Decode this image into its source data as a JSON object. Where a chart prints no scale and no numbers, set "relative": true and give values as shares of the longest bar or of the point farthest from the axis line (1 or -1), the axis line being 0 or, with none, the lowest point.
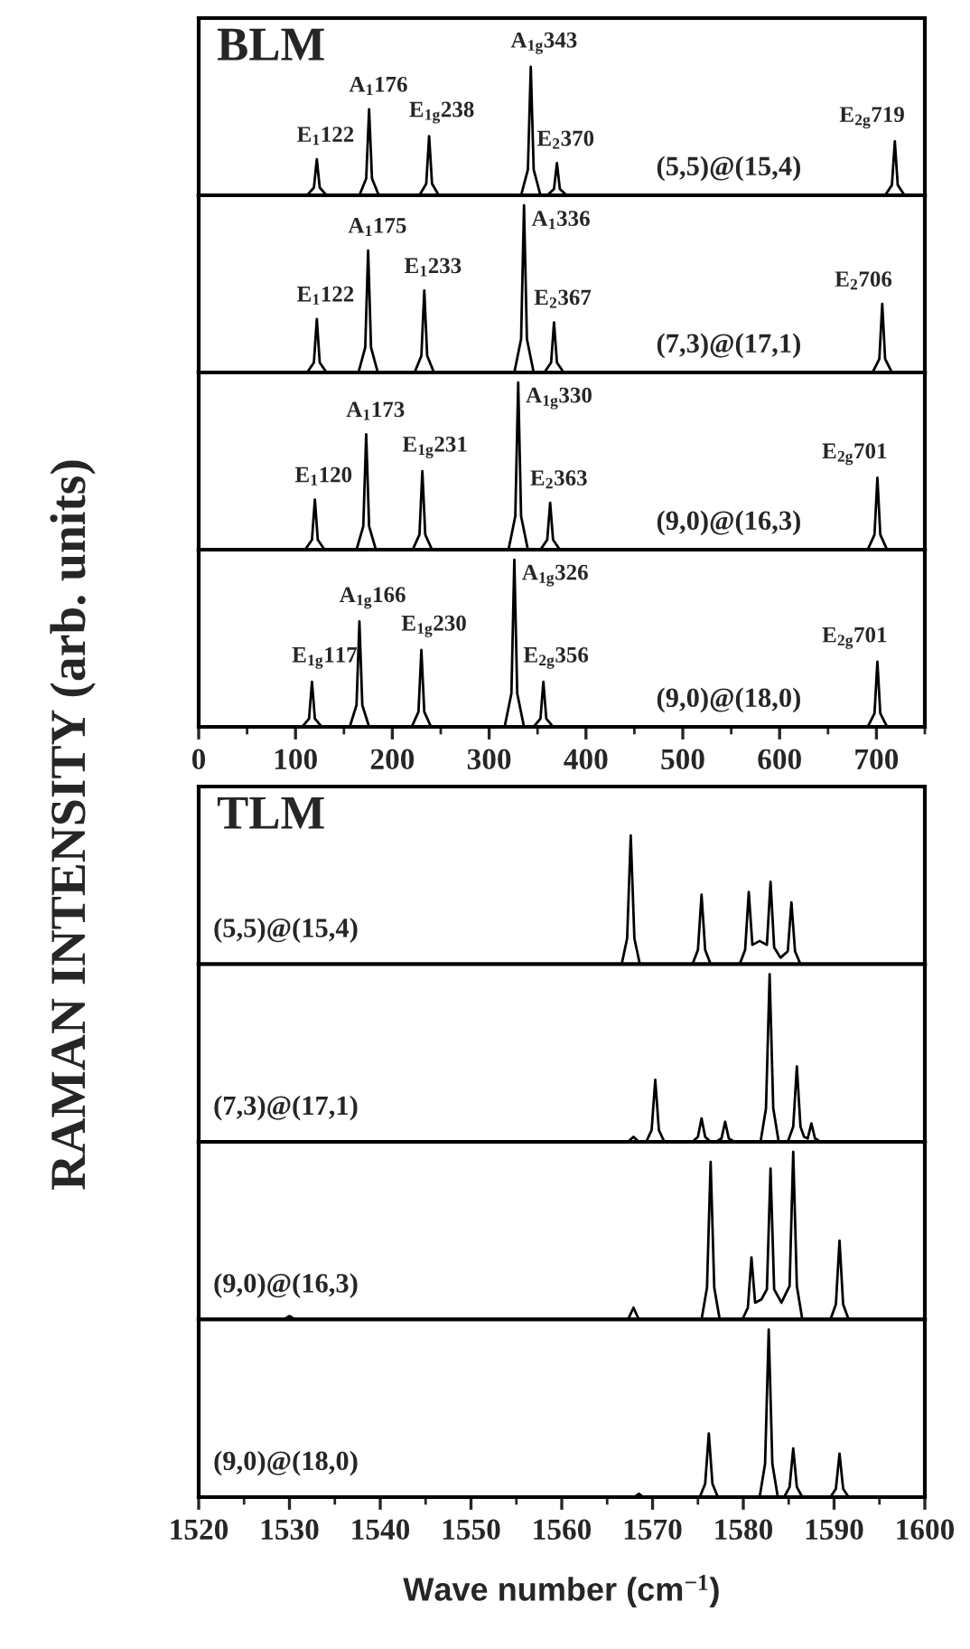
{
  "chart_data": [
    {
      "type": "line",
      "title": "BLM",
      "ylabel": "RAMAN INTENSITY (arb. units)",
      "relative": true,
      "xlim": [
        0,
        750
      ],
      "tick_labels": false,
      "legend": false,
      "grid": false,
      "marker": "none",
      "line_style": "solid",
      "series": [
        {
          "name": "(5,5)@(15,4)",
          "color": "#000000",
          "x": [
            0,
            112,
            119,
            122,
            125,
            132,
            166,
            173,
            176,
            179,
            186,
            228,
            235,
            238,
            241,
            248,
            333,
            340,
            343,
            346,
            353,
            360,
            367,
            370,
            373,
            380,
            709,
            716,
            719,
            722,
            729,
            750
          ],
          "values": [
            0,
            0,
            0.06,
            0.28,
            0.06,
            0,
            0,
            0.13,
            0.67,
            0.13,
            0,
            0,
            0.09,
            0.46,
            0.09,
            0,
            0,
            0.2,
            1,
            0.2,
            0,
            0,
            0.05,
            0.25,
            0.05,
            0,
            0,
            0.08,
            0.42,
            0.08,
            0,
            0
          ]
        }
      ],
      "annotations": [
        {
          "text": "E$_{1}$122",
          "x": 122,
          "y": 0.28
        },
        {
          "text": "A$_{1}$176",
          "x": 176,
          "y": 0.67
        },
        {
          "text": "E$_{1g}$238",
          "x": 238,
          "y": 0.46
        },
        {
          "text": "A$_{1g}$343",
          "x": 343,
          "y": 1
        },
        {
          "text": "E$_{2}$370",
          "x": 370,
          "y": 0.25
        },
        {
          "text": "E$_{2g}$719",
          "x": 719,
          "y": 0.42
        }
      ]
    },
    {
      "type": "line",
      "relative": true,
      "xlim": [
        0,
        750
      ],
      "tick_labels": false,
      "legend": false,
      "grid": false,
      "marker": "none",
      "line_style": "solid",
      "series": [
        {
          "name": "(7,3)@(17,1)",
          "color": "#000000",
          "x": [
            0,
            112,
            119,
            122,
            125,
            132,
            165,
            172,
            175,
            178,
            185,
            223,
            230,
            233,
            236,
            243,
            326,
            333,
            336,
            339,
            346,
            357,
            364,
            367,
            370,
            377,
            696,
            703,
            706,
            709,
            716,
            750
          ],
          "values": [
            0,
            0,
            0.06,
            0.32,
            0.06,
            0,
            0,
            0.15,
            0.73,
            0.15,
            0,
            0,
            0.1,
            0.49,
            0.1,
            0,
            0,
            0.2,
            1,
            0.2,
            0,
            0,
            0.06,
            0.3,
            0.06,
            0,
            0,
            0.08,
            0.41,
            0.08,
            0,
            0
          ]
        }
      ],
      "annotations": [
        {
          "text": "E$_{1}$122",
          "x": 122,
          "y": 0.32
        },
        {
          "text": "A$_{1}$175",
          "x": 175,
          "y": 0.73
        },
        {
          "text": "E$_{1}$233",
          "x": 233,
          "y": 0.49
        },
        {
          "text": "A$_{1}$336",
          "x": 336,
          "y": 1
        },
        {
          "text": "E$_{2}$367",
          "x": 367,
          "y": 0.3
        },
        {
          "text": "E$_{2}$706",
          "x": 706,
          "y": 0.41
        }
      ]
    },
    {
      "type": "line",
      "relative": true,
      "xlim": [
        0,
        750
      ],
      "tick_labels": false,
      "legend": false,
      "grid": false,
      "marker": "none",
      "line_style": "solid",
      "series": [
        {
          "name": "(9,0)@(16,3)",
          "color": "#000000",
          "x": [
            0,
            110,
            117,
            120,
            123,
            130,
            163,
            170,
            173,
            176,
            183,
            221,
            228,
            231,
            234,
            241,
            320,
            327,
            330,
            333,
            340,
            353,
            360,
            363,
            366,
            373,
            691,
            698,
            701,
            704,
            711,
            750
          ],
          "values": [
            0,
            0,
            0.06,
            0.3,
            0.06,
            0,
            0,
            0.14,
            0.69,
            0.14,
            0,
            0,
            0.09,
            0.47,
            0.09,
            0,
            0,
            0.2,
            1,
            0.2,
            0,
            0,
            0.06,
            0.28,
            0.06,
            0,
            0,
            0.09,
            0.43,
            0.09,
            0,
            0
          ]
        }
      ],
      "annotations": [
        {
          "text": "E$_{1}$120",
          "x": 120,
          "y": 0.3
        },
        {
          "text": "A$_{1}$173",
          "x": 173,
          "y": 0.69
        },
        {
          "text": "E$_{1g}$231",
          "x": 231,
          "y": 0.47
        },
        {
          "text": "A$_{1g}$330",
          "x": 330,
          "y": 1
        },
        {
          "text": "E$_{2}$363",
          "x": 363,
          "y": 0.28
        },
        {
          "text": "E$_{2g}$701",
          "x": 701,
          "y": 0.43
        }
      ]
    },
    {
      "type": "line",
      "relative": true,
      "xlim": [
        0,
        750
      ],
      "xticks": [
        0,
        {
          "value": 50,
          "label": null
        },
        100,
        {
          "value": 150,
          "label": null
        },
        200,
        {
          "value": 250,
          "label": null
        },
        300,
        {
          "value": 350,
          "label": null
        },
        400,
        {
          "value": 450,
          "label": null
        },
        500,
        {
          "value": 550,
          "label": null
        },
        600,
        {
          "value": 650,
          "label": null
        },
        700,
        {
          "value": 750,
          "label": null
        }
      ],
      "tick_labels": "x",
      "legend": false,
      "grid": false,
      "marker": "none",
      "line_style": "solid",
      "series": [
        {
          "name": "(9,0)@(18,0)",
          "color": "#000000",
          "x": [
            0,
            107,
            114,
            117,
            120,
            127,
            156,
            163,
            166,
            169,
            176,
            220,
            227,
            230,
            233,
            240,
            316,
            323,
            326,
            329,
            336,
            346,
            353,
            356,
            359,
            366,
            691,
            698,
            701,
            704,
            711,
            750
          ],
          "values": [
            0,
            0,
            0.05,
            0.27,
            0.05,
            0,
            0,
            0.13,
            0.63,
            0.13,
            0,
            0,
            0.09,
            0.46,
            0.09,
            0,
            0,
            0.2,
            1,
            0.2,
            0,
            0,
            0.05,
            0.27,
            0.05,
            0,
            0,
            0.08,
            0.39,
            0.08,
            0,
            0
          ]
        }
      ],
      "annotations": [
        {
          "text": "E$_{1g}$117",
          "x": 117,
          "y": 0.27
        },
        {
          "text": "A$_{1g}$166",
          "x": 166,
          "y": 0.63
        },
        {
          "text": "E$_{1g}$230",
          "x": 230,
          "y": 0.46
        },
        {
          "text": "A$_{1g}$326",
          "x": 326,
          "y": 1
        },
        {
          "text": "E$_{2g}$356",
          "x": 356,
          "y": 0.27
        },
        {
          "text": "E$_{2g}$701",
          "x": 701,
          "y": 0.39
        }
      ]
    },
    {
      "type": "line",
      "title": "TLM",
      "relative": true,
      "xlim": [
        1520,
        1600
      ],
      "tick_labels": false,
      "legend": false,
      "grid": false,
      "marker": "none",
      "line_style": "solid",
      "series": [
        {
          "name": "(5,5)@(15,4)",
          "color": "#000000",
          "x": [
            1520,
            1566.6,
            1567.2,
            1567.6,
            1568.0,
            1568.6,
            1574.4,
            1575.0,
            1575.4,
            1575.8,
            1576.4,
            1579.6,
            1580.2,
            1580.6,
            1581.0,
            1581.8,
            1582.6,
            1583.0,
            1583.4,
            1584.1,
            1584.9,
            1585.3,
            1585.7,
            1586.3,
            1600
          ],
          "values": [
            0,
            0,
            0.2,
            1,
            0.2,
            0,
            0,
            0.11,
            0.54,
            0.11,
            0,
            0,
            0.11,
            0.56,
            0.15,
            0.18,
            0.15,
            0.64,
            0.13,
            0.05,
            0.1,
            0.48,
            0.1,
            0,
            0
          ]
        }
      ]
    },
    {
      "type": "line",
      "relative": true,
      "xlim": [
        1520,
        1600
      ],
      "tick_labels": false,
      "legend": false,
      "grid": false,
      "marker": "none",
      "line_style": "solid",
      "series": [
        {
          "name": "(7,3)@(17,1)",
          "color": "#000000",
          "x": [
            1520,
            1567.3,
            1567.9,
            1568.5,
            1569.3,
            1569.9,
            1570.3,
            1570.7,
            1571.3,
            1574.4,
            1575.0,
            1575.4,
            1575.8,
            1576.4,
            1577.0,
            1577.6,
            1578.0,
            1578.4,
            1579.0,
            1581.9,
            1582.5,
            1582.9,
            1583.3,
            1583.9,
            1584.9,
            1585.5,
            1585.9,
            1586.3,
            1586.7,
            1587.1,
            1587.5,
            1587.9,
            1588.5,
            1600
          ],
          "values": [
            0,
            0,
            0.03,
            0,
            0,
            0.07,
            0.37,
            0.07,
            0,
            0,
            0.03,
            0.14,
            0.03,
            0,
            0,
            0.02,
            0.12,
            0.02,
            0,
            0,
            0.2,
            1,
            0.2,
            0,
            0,
            0.09,
            0.45,
            0.09,
            0.03,
            0.02,
            0.11,
            0.02,
            0,
            0
          ]
        }
      ]
    },
    {
      "type": "line",
      "relative": true,
      "xlim": [
        1520,
        1600
      ],
      "tick_labels": false,
      "legend": false,
      "grid": false,
      "marker": "none",
      "line_style": "solid",
      "series": [
        {
          "name": "(9,0)@(16,3)",
          "color": "#000000",
          "x": [
            1520,
            1529.4,
            1530.0,
            1530.6,
            1567.3,
            1567.9,
            1568.5,
            1575.4,
            1576.0,
            1576.4,
            1576.8,
            1577.4,
            1579.9,
            1580.5,
            1580.9,
            1581.3,
            1582.0,
            1582.6,
            1583.0,
            1583.4,
            1584.2,
            1585.1,
            1585.5,
            1585.9,
            1586.5,
            1589.6,
            1590.2,
            1590.6,
            1591.0,
            1591.6,
            1600
          ],
          "values": [
            0,
            0,
            0.02,
            0,
            0,
            0.07,
            0,
            0,
            0.19,
            0.94,
            0.19,
            0,
            0,
            0.07,
            0.37,
            0.1,
            0.12,
            0.18,
            0.9,
            0.18,
            0.1,
            0.2,
            1,
            0.2,
            0,
            0,
            0.09,
            0.47,
            0.09,
            0,
            0
          ]
        }
      ]
    },
    {
      "type": "line",
      "xlabel": "Wave number (cm$^{−1}$)",
      "relative": true,
      "xlim": [
        1520,
        1600
      ],
      "xticks": [
        1520,
        {
          "value": 1525,
          "label": null
        },
        1530,
        {
          "value": 1535,
          "label": null
        },
        1540,
        {
          "value": 1545,
          "label": null
        },
        1550,
        {
          "value": 1555,
          "label": null
        },
        1560,
        {
          "value": 1565,
          "label": null
        },
        1570,
        {
          "value": 1575,
          "label": null
        },
        1580,
        {
          "value": 1585,
          "label": null
        },
        1590,
        {
          "value": 1595,
          "label": null
        },
        1600
      ],
      "tick_labels": "x",
      "legend": false,
      "grid": false,
      "marker": "none",
      "line_style": "solid",
      "series": [
        {
          "name": "(9,0)@(18,0)",
          "color": "#000000",
          "x": [
            1520,
            1568.0,
            1568.5,
            1569.0,
            1575.2,
            1575.8,
            1576.2,
            1576.6,
            1577.2,
            1581.8,
            1582.4,
            1582.8,
            1583.2,
            1583.8,
            1584.5,
            1585.1,
            1585.5,
            1585.9,
            1586.5,
            1589.6,
            1590.2,
            1590.6,
            1591.0,
            1591.6,
            1600
          ],
          "values": [
            0,
            0,
            0.02,
            0,
            0,
            0.08,
            0.38,
            0.08,
            0,
            0,
            0.2,
            1,
            0.2,
            0,
            0,
            0.06,
            0.29,
            0.06,
            0,
            0,
            0.05,
            0.26,
            0.05,
            0,
            0
          ]
        }
      ]
    }
  ]
}
